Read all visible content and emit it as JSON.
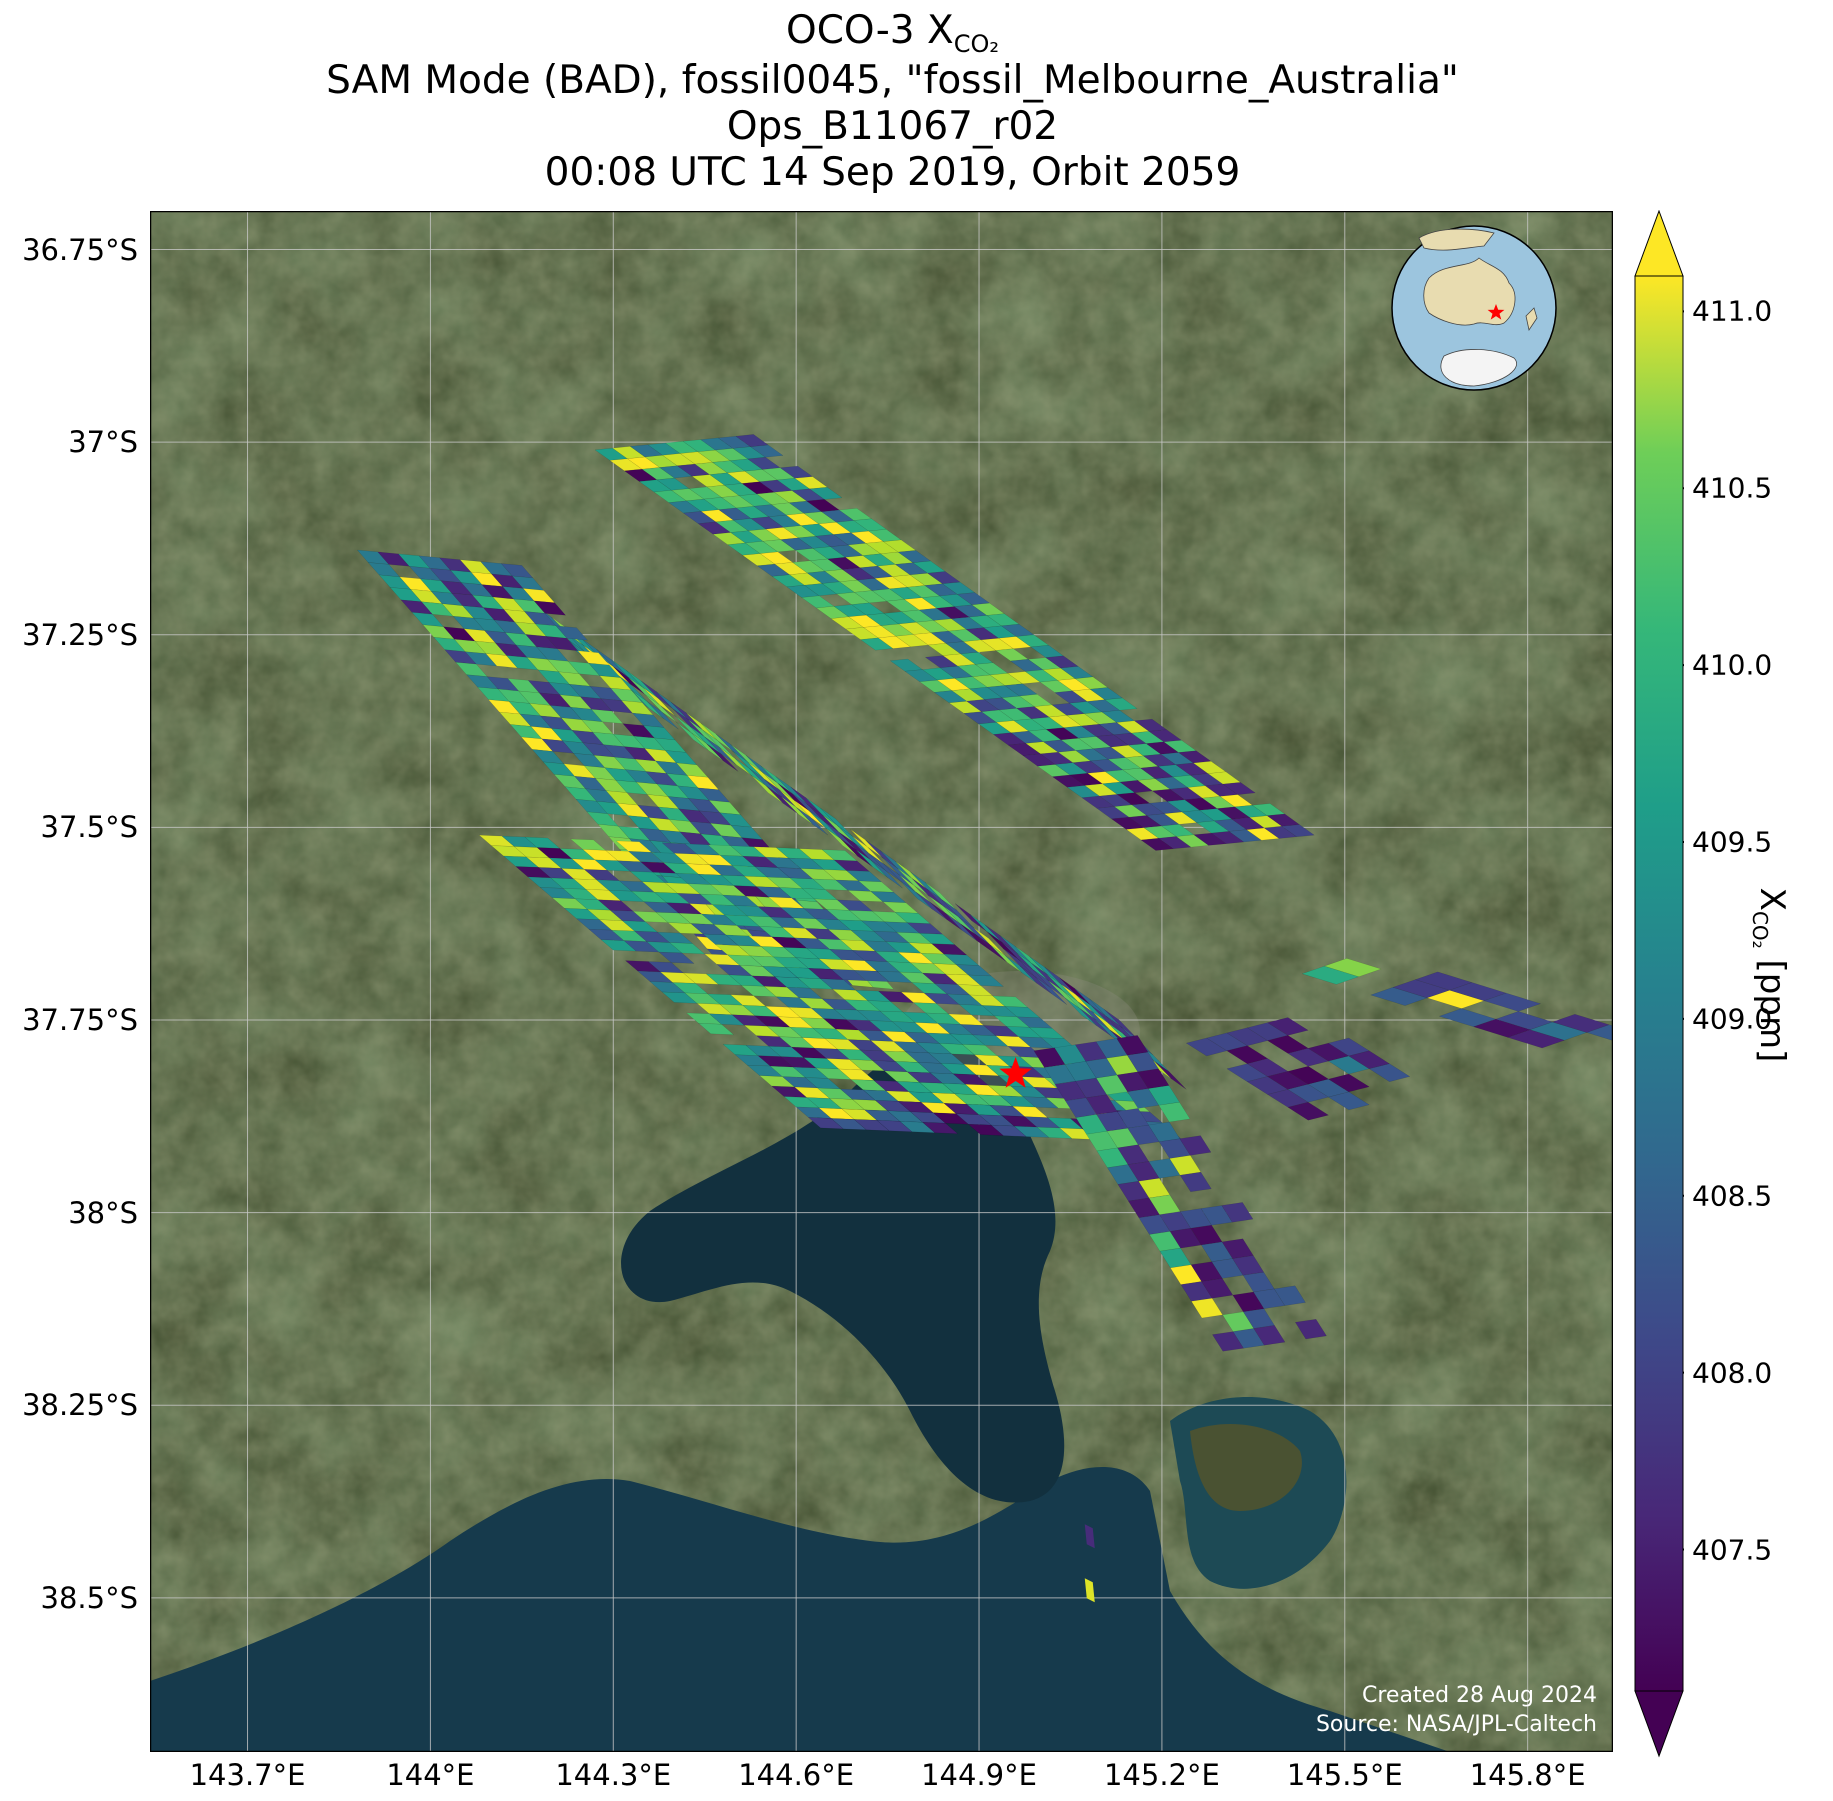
{
  "title": {
    "line1_prefix": "OCO-3 X",
    "line1_sub": "CO₂",
    "line2": "SAM Mode (BAD), fossil0045, \"fossil_Melbourne_Australia\"",
    "line3": "Ops_B11067_r02",
    "line4": "00:08 UTC 14 Sep 2019, Orbit 2059"
  },
  "map": {
    "extent": {
      "lon_min": 143.54,
      "lon_max": 145.94,
      "lat_min": -38.7,
      "lat_max": -36.7
    },
    "lat_ticks": [
      {
        "value": -36.75,
        "label": "36.75°S"
      },
      {
        "value": -37.0,
        "label": "37°S"
      },
      {
        "value": -37.25,
        "label": "37.25°S"
      },
      {
        "value": -37.5,
        "label": "37.5°S"
      },
      {
        "value": -37.75,
        "label": "37.75°S"
      },
      {
        "value": -38.0,
        "label": "38°S"
      },
      {
        "value": -38.25,
        "label": "38.25°S"
      },
      {
        "value": -38.5,
        "label": "38.5°S"
      }
    ],
    "lon_ticks": [
      {
        "value": 143.7,
        "label": "143.7°E"
      },
      {
        "value": 144.0,
        "label": "144°E"
      },
      {
        "value": 144.3,
        "label": "144.3°E"
      },
      {
        "value": 144.6,
        "label": "144.6°E"
      },
      {
        "value": 144.9,
        "label": "144.9°E"
      },
      {
        "value": 145.2,
        "label": "145.2°E"
      },
      {
        "value": 145.5,
        "label": "145.5°E"
      },
      {
        "value": 145.8,
        "label": "145.8°E"
      }
    ],
    "target": {
      "lon": 144.96,
      "lat": -37.82
    },
    "colors": {
      "land": "#3f4a2c",
      "water": "#12303e",
      "grid": "#c8c8c8",
      "star": "#ff0000"
    },
    "credit_line1": "Created 28 Aug 2024",
    "credit_line2": "Source: NASA/JPL-Caltech"
  },
  "chart_data": {
    "type": "heatmap",
    "variable": "XCO2",
    "units": "ppm",
    "swaths": [
      {
        "lon0": 144.27,
        "lat0": -37.01,
        "dlon_along": 0.92,
        "dlat_along": -0.52,
        "dlon_across": 0.26,
        "dlat_across": 0.02,
        "rows": 38,
        "cols": 9,
        "seed": 11,
        "coverage": 0.95,
        "lowfrac": 0.15,
        "hi_start": 0.7
      },
      {
        "lon0": 144.15,
        "lat0": -37.2,
        "dlon_along": 0.98,
        "dlat_along": -0.55,
        "dlon_across": 0.11,
        "dlat_across": -0.09,
        "rows": 40,
        "cols": 4,
        "seed": 23,
        "coverage": 0.85,
        "lowfrac": 0.2,
        "hi_start": 0.6
      },
      {
        "lon0": 143.88,
        "lat0": -37.14,
        "dlon_along": 0.61,
        "dlat_along": -0.55,
        "dlon_across": 0.27,
        "dlat_across": -0.02,
        "rows": 34,
        "cols": 8,
        "seed": 37,
        "coverage": 0.92,
        "lowfrac": 0.2,
        "hi_start": 0.85
      },
      {
        "lon0": 144.08,
        "lat0": -37.51,
        "dlon_along": 0.56,
        "dlat_along": -0.38,
        "dlon_across": 0.6,
        "dlat_across": -0.02,
        "rows": 28,
        "cols": 16,
        "seed": 41,
        "coverage": 0.9,
        "lowfrac": 0.2,
        "hi_start": 0.9
      },
      {
        "lon0": 144.99,
        "lat0": -37.79,
        "dlon_along": 0.31,
        "dlat_along": -0.39,
        "dlon_across": 0.17,
        "dlat_across": 0.02,
        "rows": 18,
        "cols": 5,
        "seed": 53,
        "coverage": 0.7,
        "lowfrac": 0.45,
        "hi_start": 0.5
      },
      {
        "lon0": 145.24,
        "lat0": -37.78,
        "dlon_along": 0.2,
        "dlat_along": -0.1,
        "dlon_across": 0.2,
        "dlat_across": 0.04,
        "rows": 6,
        "cols": 6,
        "seed": 67,
        "coverage": 0.55,
        "lowfrac": 0.75,
        "hi_start": 0.5
      },
      {
        "lon0": 145.43,
        "lat0": -37.69,
        "dlon_along": 0.45,
        "dlat_along": -0.11,
        "dlon_across": 0.11,
        "dlat_across": 0.03,
        "rows": 8,
        "cols": 3,
        "seed": 71,
        "coverage": 0.6,
        "lowfrac": 0.5,
        "hi_start": 0.5
      }
    ],
    "isolated_pixels": [
      {
        "lon": 145.08,
        "lat": -38.42,
        "value": 407.6
      },
      {
        "lon": 145.08,
        "lat": -38.49,
        "value": 410.9
      }
    ],
    "colorbar": {
      "label_prefix": "X",
      "label_sub": "CO₂",
      "label_suffix": " [ppm]",
      "vmin": 407.1,
      "vmax": 411.1,
      "extend": "both",
      "ticks": [
        407.5,
        408.0,
        408.5,
        409.0,
        409.5,
        410.0,
        410.5,
        411.0
      ],
      "tick_labels": [
        "407.5",
        "408.0",
        "408.5",
        "409.0",
        "409.5",
        "410.0",
        "410.5",
        "411.0"
      ],
      "colormap": "viridis"
    }
  }
}
